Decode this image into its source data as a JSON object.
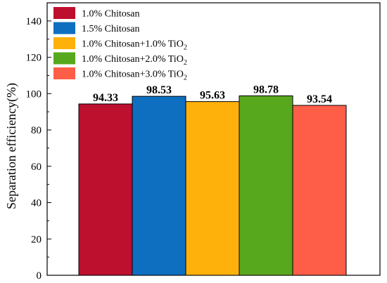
{
  "chart_data": {
    "type": "bar",
    "title": "",
    "xlabel": "",
    "ylabel": "Separation efficiency(%)",
    "ylim": [
      0,
      150
    ],
    "yticks": [
      0,
      20,
      40,
      60,
      80,
      100,
      120,
      140
    ],
    "legend_position": "top-left",
    "grid": false,
    "series": [
      {
        "name": "1.0% Chitosan",
        "legend_main": "1.0% Chitosan",
        "legend_sub": "",
        "value": 94.33,
        "label": "94.33",
        "color": "#bd0f2e"
      },
      {
        "name": "1.5% Chitosan",
        "legend_main": "1.5% Chitosan",
        "legend_sub": "",
        "value": 98.53,
        "label": "98.53",
        "color": "#0e6fc0"
      },
      {
        "name": "1.0% Chitosan+1.0% TiO2",
        "legend_main": "1.0% Chitosan+1.0% TiO",
        "legend_sub": "2",
        "value": 95.63,
        "label": "95.63",
        "color": "#fdb10a"
      },
      {
        "name": "1.0% Chitosan+2.0% TiO2",
        "legend_main": "1.0% Chitosan+2.0% TiO",
        "legend_sub": "2",
        "value": 98.78,
        "label": "98.78",
        "color": "#58a81d"
      },
      {
        "name": "1.0% Chitosan+3.0% TiO2",
        "legend_main": "1.0% Chitosan+3.0% TiO",
        "legend_sub": "2",
        "value": 93.54,
        "label": "93.54",
        "color": "#fe5e48"
      }
    ]
  }
}
